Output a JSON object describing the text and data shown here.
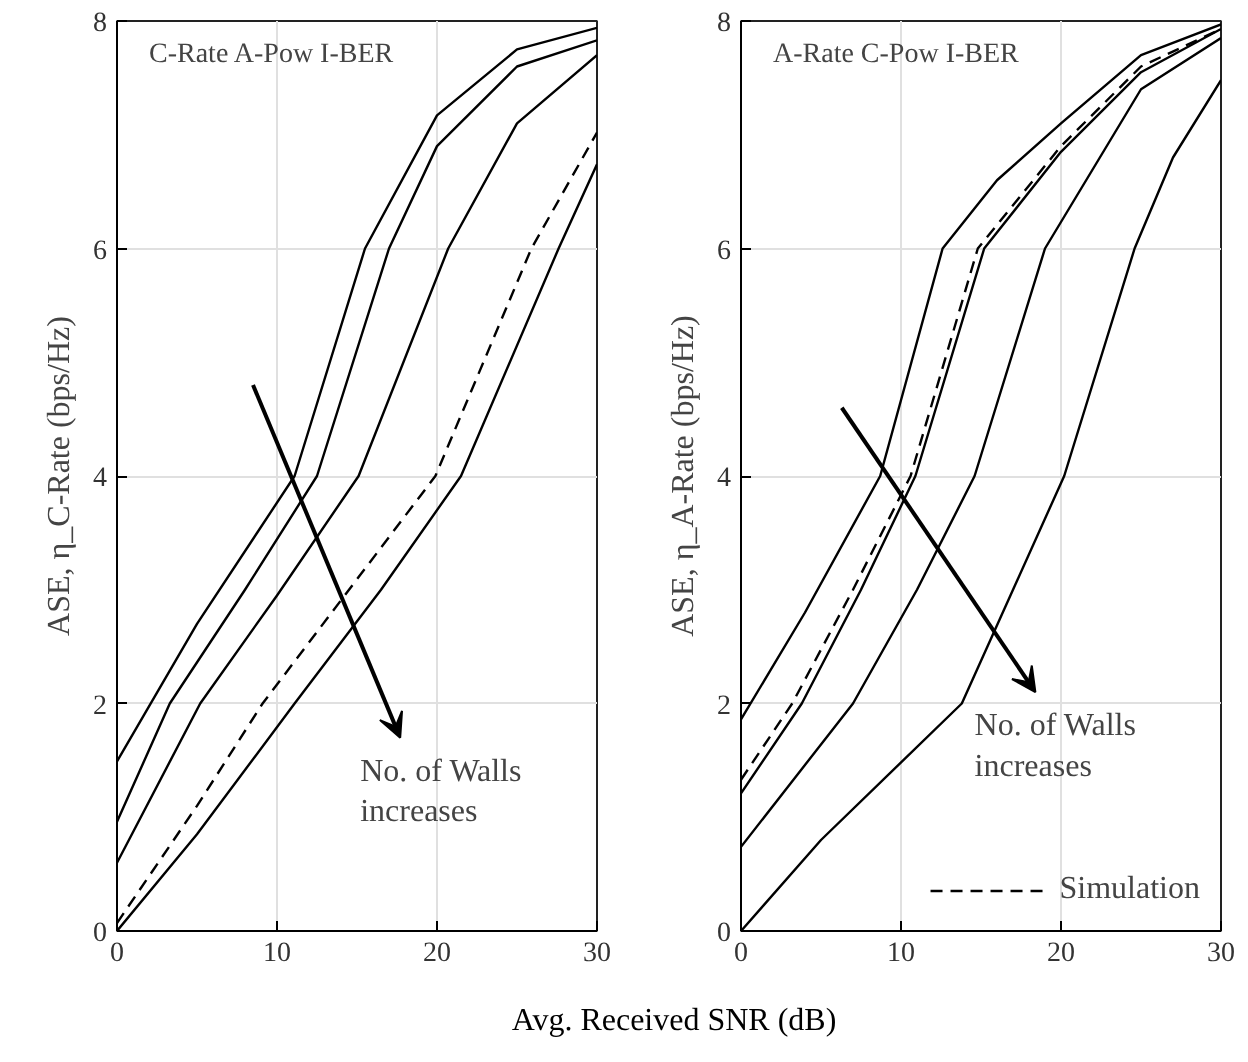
{
  "chart_data": [
    {
      "type": "line",
      "ylabel": "ASE, η_C-Rate (bps/Hz)",
      "xlabel": "Avg. Received SNR (dB)",
      "xlim": [
        0,
        30
      ],
      "xticks": [
        0,
        10,
        20,
        30
      ],
      "ylim": [
        0,
        8
      ],
      "yticks": [
        0,
        2,
        4,
        6,
        8
      ],
      "grid": true,
      "legend": false,
      "annotations": [
        "C-Rate A-Pow I-BER",
        "No. of Walls increases"
      ],
      "series": [
        {
          "color": "#000000",
          "line_style": "solid",
          "x": [
            0,
            5,
            11.1,
            15.5,
            20,
            25,
            30
          ],
          "values": [
            1.49,
            2.7,
            4,
            6,
            7.17,
            7.75,
            7.94
          ]
        },
        {
          "color": "#000000",
          "line_style": "solid",
          "x": [
            0,
            3.3,
            8,
            12.5,
            17,
            20,
            25,
            30
          ],
          "values": [
            0.96,
            2,
            3,
            4,
            6,
            6.9,
            7.6,
            7.83
          ]
        },
        {
          "color": "#000000",
          "line_style": "solid",
          "x": [
            0,
            5.2,
            10,
            15.1,
            20.7,
            25,
            30
          ],
          "values": [
            0.6,
            2,
            2.95,
            4,
            6,
            7.1,
            7.7
          ]
        },
        {
          "color": "#000000",
          "line_style": "dashed",
          "x": [
            0,
            5,
            9.1,
            14.5,
            19.9,
            25.9,
            30
          ],
          "values": [
            0.07,
            1.1,
            2,
            3,
            4,
            6,
            7.02
          ]
        },
        {
          "color": "#000000",
          "line_style": "solid",
          "x": [
            0,
            5,
            11.1,
            16.5,
            21.5,
            27.6,
            30
          ],
          "values": [
            0,
            0.85,
            2,
            3,
            4,
            6,
            6.74
          ]
        }
      ]
    },
    {
      "type": "line",
      "ylabel": "ASE, η_A-Rate (bps/Hz)",
      "xlim": [
        0,
        30
      ],
      "xticks": [
        0,
        10,
        20,
        30
      ],
      "ylim": [
        0,
        8
      ],
      "yticks": [
        0,
        2,
        4,
        6,
        8
      ],
      "grid": true,
      "legend": "bottom right",
      "annotations": [
        "A-Rate C-Pow I-BER",
        "No. of Walls increases"
      ],
      "series": [
        {
          "color": "#000000",
          "line_style": "solid",
          "x": [
            0,
            4,
            8.7,
            12.6,
            16,
            20,
            25,
            30
          ],
          "values": [
            1.86,
            2.8,
            4,
            6,
            6.6,
            7.1,
            7.7,
            7.97
          ]
        },
        {
          "name": "Simulation",
          "color": "#000000",
          "line_style": "dashed",
          "x": [
            0,
            3.2,
            7,
            10.6,
            14.8,
            20,
            25,
            30
          ],
          "values": [
            1.33,
            2,
            3,
            4,
            6,
            6.9,
            7.6,
            7.93
          ]
        },
        {
          "color": "#000000",
          "line_style": "solid",
          "x": [
            0,
            3.8,
            7.5,
            10.9,
            15.2,
            20,
            25,
            30
          ],
          "values": [
            1.21,
            2,
            3,
            4,
            6,
            6.85,
            7.55,
            7.93
          ]
        },
        {
          "color": "#000000",
          "line_style": "solid",
          "x": [
            0,
            7,
            11,
            14.6,
            19,
            25,
            30
          ],
          "values": [
            0.74,
            2,
            3,
            4,
            6,
            7.4,
            7.85
          ]
        },
        {
          "color": "#000000",
          "line_style": "solid",
          "x": [
            0,
            5,
            13.8,
            17,
            20.2,
            24.6,
            27,
            30
          ],
          "values": [
            0,
            0.8,
            2,
            3,
            4,
            6,
            6.8,
            7.48
          ]
        }
      ]
    }
  ]
}
